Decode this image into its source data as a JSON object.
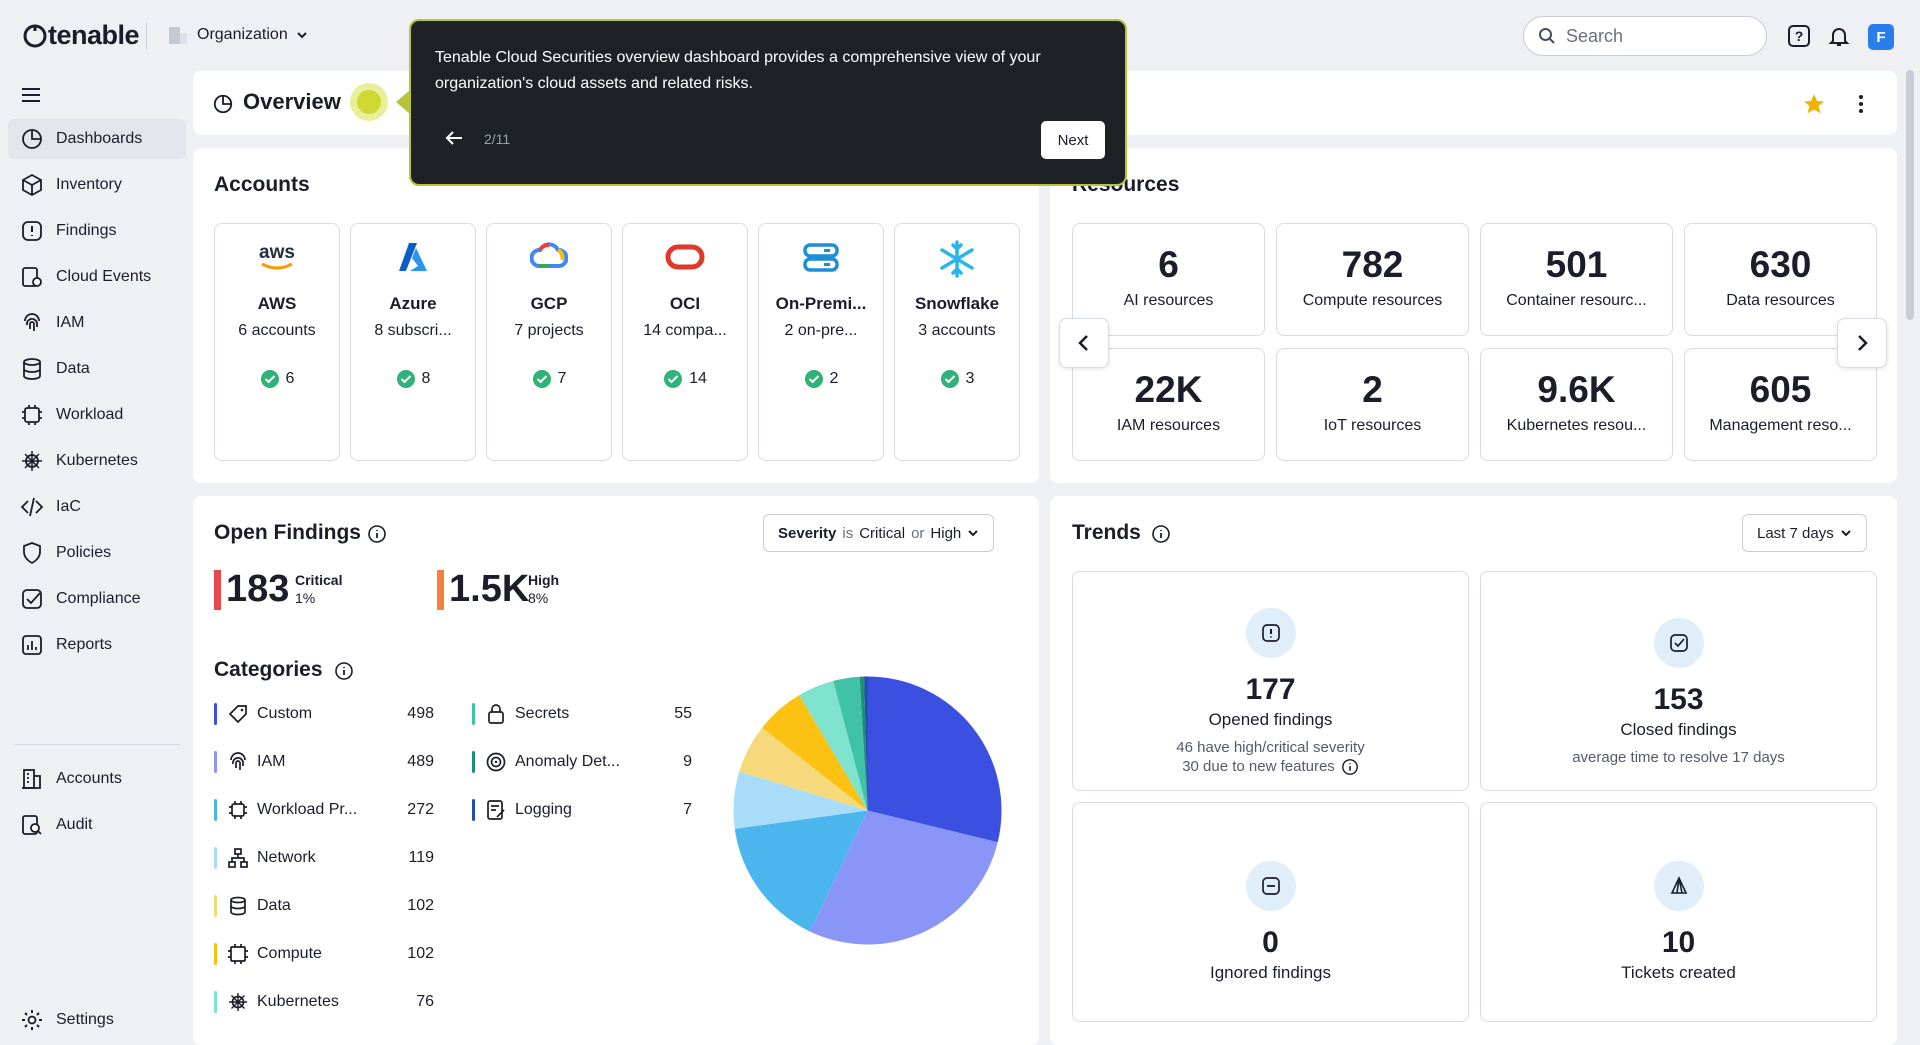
{
  "brand": {
    "logo_text": "tenable",
    "org_label": "Organization"
  },
  "search": {
    "placeholder": "Search"
  },
  "user": {
    "avatar_letter": "F"
  },
  "sidebar": {
    "items": [
      {
        "label": "Dashboards",
        "icon": "dashboard-icon"
      },
      {
        "label": "Inventory",
        "icon": "cube-icon"
      },
      {
        "label": "Findings",
        "icon": "alert-icon"
      },
      {
        "label": "Cloud Events",
        "icon": "events-icon"
      },
      {
        "label": "IAM",
        "icon": "fingerprint-icon"
      },
      {
        "label": "Data",
        "icon": "database-icon"
      },
      {
        "label": "Workload",
        "icon": "chip-icon"
      },
      {
        "label": "Kubernetes",
        "icon": "helm-icon"
      },
      {
        "label": "IaC",
        "icon": "code-icon"
      },
      {
        "label": "Policies",
        "icon": "shield-icon"
      },
      {
        "label": "Compliance",
        "icon": "checkbox-icon"
      },
      {
        "label": "Reports",
        "icon": "report-icon"
      }
    ],
    "bottom_items": [
      {
        "label": "Accounts"
      },
      {
        "label": "Audit"
      }
    ],
    "settings_label": "Settings"
  },
  "header": {
    "title": "Overview"
  },
  "tour": {
    "text": "Tenable Cloud Securities overview dashboard provides a comprehensive view of your organization's cloud assets and related risks.",
    "progress": "2/11",
    "next_label": "Next"
  },
  "accounts": {
    "title": "Accounts",
    "items": [
      {
        "name": "AWS",
        "sub": "6 accounts",
        "ok": "6"
      },
      {
        "name": "Azure",
        "sub": "8 subscri...",
        "ok": "8"
      },
      {
        "name": "GCP",
        "sub": "7 projects",
        "ok": "7"
      },
      {
        "name": "OCI",
        "sub": "14 compa...",
        "ok": "14"
      },
      {
        "name": "On-Premi...",
        "sub": "2 on-pre...",
        "ok": "2"
      },
      {
        "name": "Snowflake",
        "sub": "3 accounts",
        "ok": "3"
      }
    ]
  },
  "resources": {
    "title": "Resources",
    "items": [
      {
        "value": "6",
        "label": "AI resources"
      },
      {
        "value": "782",
        "label": "Compute resources"
      },
      {
        "value": "501",
        "label": "Container resourc..."
      },
      {
        "value": "630",
        "label": "Data resources"
      },
      {
        "value": "22K",
        "label": "IAM resources"
      },
      {
        "value": "2",
        "label": "IoT resources"
      },
      {
        "value": "9.6K",
        "label": "Kubernetes resou..."
      },
      {
        "value": "605",
        "label": "Management reso..."
      }
    ]
  },
  "open_findings": {
    "title": "Open Findings",
    "filter": {
      "field": "Severity",
      "op": "is",
      "v1": "Critical",
      "or": "or",
      "v2": "High"
    },
    "critical": {
      "value": "183",
      "label": "Critical",
      "pct": "1%",
      "color": "#e5484d"
    },
    "high": {
      "value": "1.5K",
      "label": "High",
      "pct": "8%",
      "color": "#f5803e"
    }
  },
  "categories": {
    "title": "Categories",
    "items": [
      {
        "name": "Custom",
        "count": "498",
        "color": "#3b50e0"
      },
      {
        "name": "IAM",
        "count": "489",
        "color": "#8a96f7"
      },
      {
        "name": "Workload Pr...",
        "count": "272",
        "color": "#4bb5ee"
      },
      {
        "name": "Network",
        "count": "119",
        "color": "#a8dcf8"
      },
      {
        "name": "Data",
        "count": "102",
        "color": "#f5d97a"
      },
      {
        "name": "Compute",
        "count": "102",
        "color": "#fbc214"
      },
      {
        "name": "Kubernetes",
        "count": "76",
        "color": "#7ee2cc"
      },
      {
        "name": "Secrets",
        "count": "55",
        "color": "#3fc2a6"
      },
      {
        "name": "Anomaly Det...",
        "count": "9",
        "color": "#1c8f7a"
      },
      {
        "name": "Logging",
        "count": "7",
        "color": "#1f4fa8"
      }
    ]
  },
  "chart_data": {
    "type": "pie",
    "categories": [
      "Custom",
      "IAM",
      "Workload Pr...",
      "Network",
      "Data",
      "Compute",
      "Kubernetes",
      "Secrets",
      "Anomaly Det...",
      "Logging"
    ],
    "values": [
      498,
      489,
      272,
      119,
      102,
      102,
      76,
      55,
      9,
      7
    ]
  },
  "trends": {
    "title": "Trends",
    "range": "Last 7 days",
    "opened": {
      "value": "177",
      "label": "Opened findings",
      "sub1": "46 have high/critical severity",
      "sub2": "30 due to new features"
    },
    "closed": {
      "value": "153",
      "label": "Closed findings",
      "sub": "average time to resolve 17 days"
    },
    "ignored": {
      "value": "0",
      "label": "Ignored findings"
    },
    "tickets": {
      "value": "10",
      "label": "Tickets created"
    }
  }
}
